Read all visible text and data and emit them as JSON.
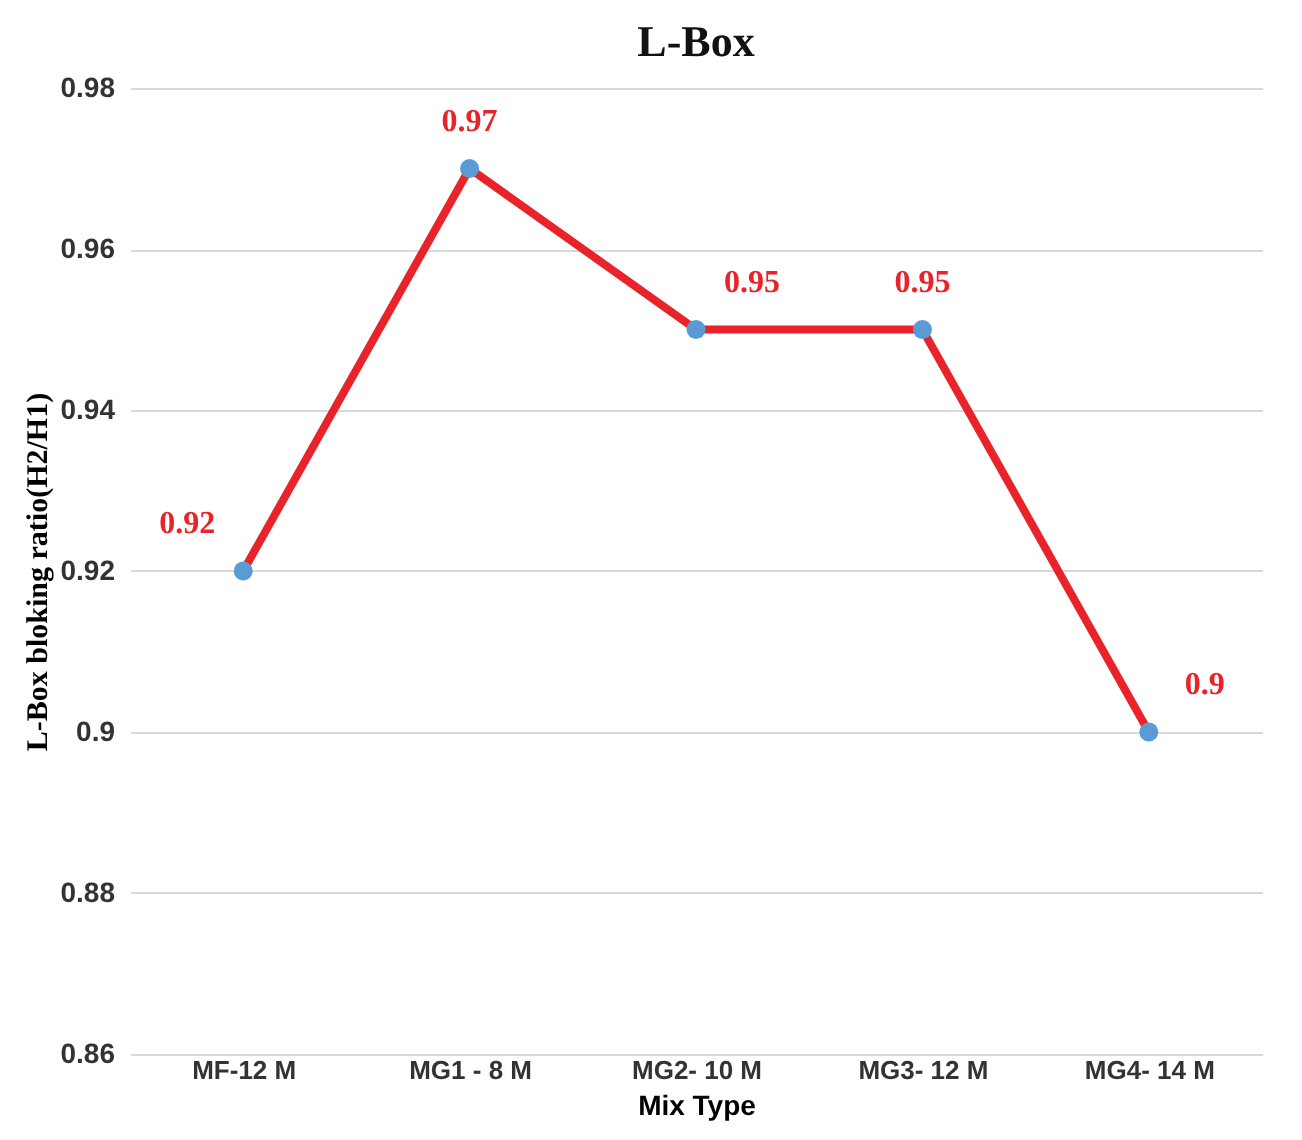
{
  "chart_data": {
    "type": "line",
    "title": "L-Box",
    "xlabel": "Mix Type",
    "ylabel": "L-Box bloking ratio(H2/H1)",
    "categories": [
      "MF-12 M",
      "MG1 - 8 M",
      "MG2- 10 M",
      "MG3- 12 M",
      "MG4- 14 M"
    ],
    "series": [
      {
        "color": "#e8232a",
        "colors": [
          "#5b9bd5",
          "#5b9bd5",
          "#5b9bd5",
          "#5b9bd5",
          "#5b9bd5"
        ],
        "values": [
          0.92,
          0.97,
          0.95,
          0.95,
          0.9
        ]
      }
    ],
    "ylim": [
      0.86,
      0.98
    ],
    "yticks": [
      0.86,
      0.88,
      0.9,
      0.92,
      0.94,
      0.96,
      0.98
    ],
    "grid": "y",
    "marker": "circle",
    "line_style": "solid",
    "data_labels": true
  }
}
